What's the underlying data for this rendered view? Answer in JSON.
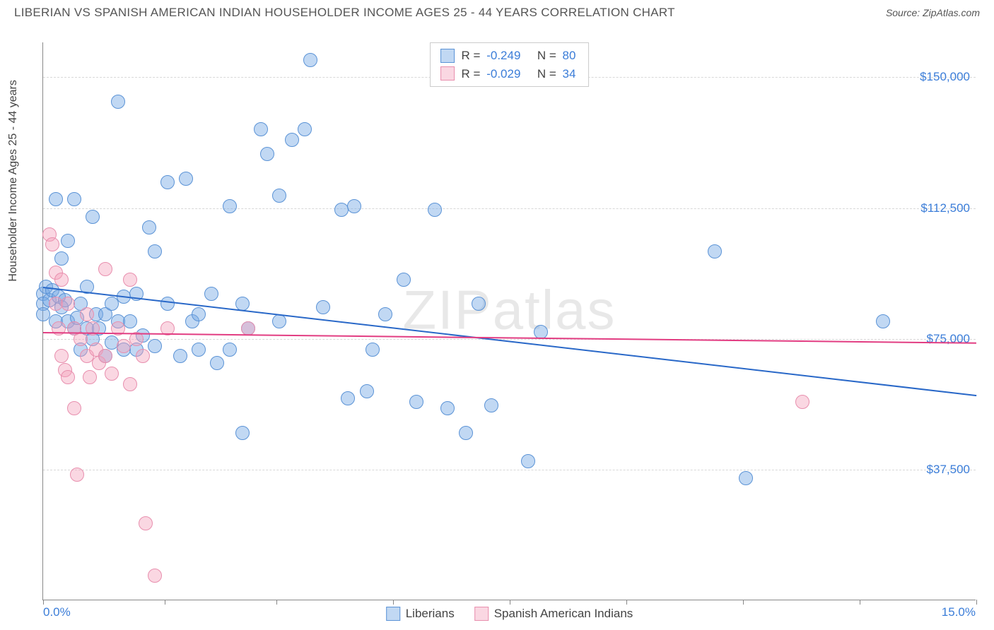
{
  "title": "LIBERIAN VS SPANISH AMERICAN INDIAN HOUSEHOLDER INCOME AGES 25 - 44 YEARS CORRELATION CHART",
  "source": "Source: ZipAtlas.com",
  "watermark": "ZIPatlas",
  "chart": {
    "type": "scatter",
    "y_axis_label": "Householder Income Ages 25 - 44 years",
    "xlim": [
      0,
      15
    ],
    "ylim": [
      0,
      160000
    ],
    "x_min_label": "0.0%",
    "x_max_label": "15.0%",
    "y_ticks": [
      {
        "value": 37500,
        "label": "$37,500"
      },
      {
        "value": 75000,
        "label": "$75,000"
      },
      {
        "value": 112500,
        "label": "$112,500"
      },
      {
        "value": 150000,
        "label": "$150,000"
      }
    ],
    "x_tick_positions_pct": [
      0,
      13,
      25,
      37.5,
      50,
      62.5,
      75,
      87.5,
      100
    ],
    "grid_color": "#d8d8d8",
    "axis_color": "#888888",
    "background_color": "#ffffff",
    "label_color": "#444444",
    "tick_label_color": "#3b7dd8",
    "title_fontsize": 17,
    "axis_label_fontsize": 16,
    "tick_fontsize": 17,
    "marker_radius": 10,
    "marker_opacity": 0.55,
    "series": [
      {
        "name": "Liberians",
        "color_fill": "rgba(118,168,228,0.45)",
        "color_stroke": "#5b93d6",
        "trend_color": "#2968c8",
        "R": "-0.249",
        "N": "80",
        "trend_start_y": 90000,
        "trend_end_y": 59000,
        "points": [
          [
            0.0,
            88000
          ],
          [
            0.0,
            85000
          ],
          [
            0.0,
            82000
          ],
          [
            0.05,
            90000
          ],
          [
            0.1,
            86000
          ],
          [
            0.15,
            89000
          ],
          [
            0.2,
            80000
          ],
          [
            0.2,
            115000
          ],
          [
            0.25,
            87000
          ],
          [
            0.3,
            84000
          ],
          [
            0.3,
            98000
          ],
          [
            0.35,
            86000
          ],
          [
            0.4,
            80000
          ],
          [
            0.4,
            103000
          ],
          [
            0.5,
            78000
          ],
          [
            0.5,
            115000
          ],
          [
            0.55,
            81000
          ],
          [
            0.6,
            85000
          ],
          [
            0.6,
            72000
          ],
          [
            0.7,
            90000
          ],
          [
            0.7,
            78000
          ],
          [
            0.8,
            110000
          ],
          [
            0.8,
            75000
          ],
          [
            0.85,
            82000
          ],
          [
            0.9,
            78000
          ],
          [
            1.0,
            82000
          ],
          [
            1.0,
            70000
          ],
          [
            1.1,
            85000
          ],
          [
            1.1,
            74000
          ],
          [
            1.2,
            80000
          ],
          [
            1.2,
            143000
          ],
          [
            1.3,
            87000
          ],
          [
            1.3,
            72000
          ],
          [
            1.4,
            80000
          ],
          [
            1.5,
            88000
          ],
          [
            1.5,
            72000
          ],
          [
            1.6,
            76000
          ],
          [
            1.7,
            107000
          ],
          [
            1.8,
            100000
          ],
          [
            1.8,
            73000
          ],
          [
            2.0,
            85000
          ],
          [
            2.0,
            120000
          ],
          [
            2.2,
            70000
          ],
          [
            2.3,
            121000
          ],
          [
            2.4,
            80000
          ],
          [
            2.5,
            82000
          ],
          [
            2.5,
            72000
          ],
          [
            2.7,
            88000
          ],
          [
            2.8,
            68000
          ],
          [
            3.0,
            113000
          ],
          [
            3.0,
            72000
          ],
          [
            3.2,
            85000
          ],
          [
            3.2,
            48000
          ],
          [
            3.3,
            78000
          ],
          [
            3.5,
            135000
          ],
          [
            3.6,
            128000
          ],
          [
            3.8,
            116000
          ],
          [
            3.8,
            80000
          ],
          [
            4.0,
            132000
          ],
          [
            4.2,
            135000
          ],
          [
            4.3,
            155000
          ],
          [
            4.5,
            84000
          ],
          [
            4.8,
            112000
          ],
          [
            4.9,
            58000
          ],
          [
            5.0,
            113000
          ],
          [
            5.2,
            60000
          ],
          [
            5.3,
            72000
          ],
          [
            5.5,
            82000
          ],
          [
            5.8,
            92000
          ],
          [
            6.0,
            57000
          ],
          [
            6.3,
            112000
          ],
          [
            6.5,
            55000
          ],
          [
            6.8,
            48000
          ],
          [
            7.0,
            85000
          ],
          [
            7.2,
            56000
          ],
          [
            7.8,
            40000
          ],
          [
            8.0,
            77000
          ],
          [
            10.8,
            100000
          ],
          [
            11.3,
            35000
          ],
          [
            13.5,
            80000
          ]
        ]
      },
      {
        "name": "Spanish American Indians",
        "color_fill": "rgba(242,160,186,0.42)",
        "color_stroke": "#e88fae",
        "trend_color": "#e23d82",
        "R": "-0.029",
        "N": "34",
        "trend_start_y": 77000,
        "trend_end_y": 74000,
        "points": [
          [
            0.1,
            105000
          ],
          [
            0.15,
            102000
          ],
          [
            0.2,
            94000
          ],
          [
            0.2,
            85000
          ],
          [
            0.25,
            78000
          ],
          [
            0.3,
            92000
          ],
          [
            0.3,
            70000
          ],
          [
            0.35,
            66000
          ],
          [
            0.4,
            85000
          ],
          [
            0.4,
            64000
          ],
          [
            0.5,
            78000
          ],
          [
            0.5,
            55000
          ],
          [
            0.55,
            36000
          ],
          [
            0.6,
            75000
          ],
          [
            0.7,
            70000
          ],
          [
            0.7,
            82000
          ],
          [
            0.75,
            64000
          ],
          [
            0.8,
            78000
          ],
          [
            0.85,
            72000
          ],
          [
            0.9,
            68000
          ],
          [
            1.0,
            95000
          ],
          [
            1.0,
            70000
          ],
          [
            1.1,
            65000
          ],
          [
            1.2,
            78000
          ],
          [
            1.3,
            73000
          ],
          [
            1.4,
            92000
          ],
          [
            1.4,
            62000
          ],
          [
            1.5,
            75000
          ],
          [
            1.6,
            70000
          ],
          [
            1.65,
            22000
          ],
          [
            1.8,
            7000
          ],
          [
            2.0,
            78000
          ],
          [
            3.3,
            78000
          ],
          [
            12.2,
            57000
          ]
        ]
      }
    ]
  },
  "legend_bottom": [
    {
      "label": "Liberians",
      "fill": "rgba(118,168,228,0.45)",
      "stroke": "#5b93d6"
    },
    {
      "label": "Spanish American Indians",
      "fill": "rgba(242,160,186,0.42)",
      "stroke": "#e88fae"
    }
  ]
}
